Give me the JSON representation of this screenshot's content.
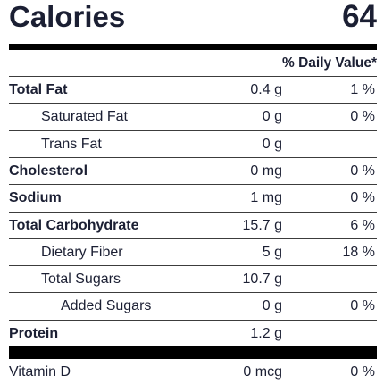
{
  "calories": {
    "label": "Calories",
    "value": "64"
  },
  "daily_value_header": "% Daily Value*",
  "nutrients": [
    {
      "name": "Total Fat",
      "amount": "0.4 g",
      "dv": "1 %",
      "bold": true,
      "indent": 0
    },
    {
      "name": "Saturated Fat",
      "amount": "0 g",
      "dv": "0 %",
      "bold": false,
      "indent": 1
    },
    {
      "name": "Trans Fat",
      "amount": "0 g",
      "dv": "",
      "bold": false,
      "indent": 1
    },
    {
      "name": "Cholesterol",
      "amount": "0 mg",
      "dv": "0 %",
      "bold": true,
      "indent": 0
    },
    {
      "name": "Sodium",
      "amount": "1 mg",
      "dv": "0 %",
      "bold": true,
      "indent": 0
    },
    {
      "name": "Total Carbohydrate",
      "amount": "15.7 g",
      "dv": "6 %",
      "bold": true,
      "indent": 0
    },
    {
      "name": "Dietary Fiber",
      "amount": "5 g",
      "dv": "18 %",
      "bold": false,
      "indent": 1
    },
    {
      "name": "Total Sugars",
      "amount": "10.7 g",
      "dv": "",
      "bold": false,
      "indent": 1
    },
    {
      "name": "Added Sugars",
      "amount": "0 g",
      "dv": "0 %",
      "bold": false,
      "indent": 2
    },
    {
      "name": "Protein",
      "amount": "1.2 g",
      "dv": "",
      "bold": true,
      "indent": 0
    }
  ],
  "vitamins": [
    {
      "name": "Vitamin D",
      "amount": "0 mcg",
      "dv": "0 %"
    }
  ]
}
